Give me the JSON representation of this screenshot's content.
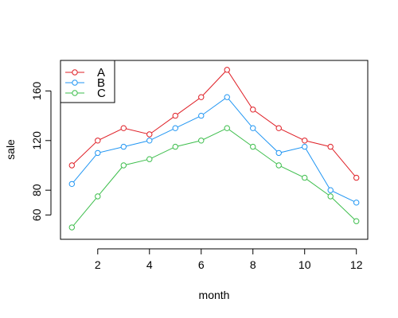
{
  "chart_data": {
    "type": "line",
    "xlabel": "month",
    "ylabel": "sale",
    "x": [
      1,
      2,
      3,
      4,
      5,
      6,
      7,
      8,
      9,
      10,
      11,
      12
    ],
    "xlim": [
      0.56,
      12.44
    ],
    "ylim": [
      40.4,
      184.6
    ],
    "x_ticks": [
      2,
      4,
      6,
      8,
      10,
      12
    ],
    "y_ticks": [
      60,
      80,
      120,
      160
    ],
    "legend_position": "top-left",
    "series": [
      {
        "name": "A",
        "color": "#DF1F26",
        "values": [
          100,
          120,
          130,
          125,
          140,
          155,
          177,
          145,
          130,
          120,
          115,
          90
        ]
      },
      {
        "name": "B",
        "color": "#2196F3",
        "values": [
          85,
          110,
          115,
          120,
          130,
          140,
          155,
          130,
          110,
          115,
          80,
          70
        ]
      },
      {
        "name": "C",
        "color": "#3DBE4C",
        "values": [
          50,
          75,
          100,
          105,
          115,
          120,
          130,
          115,
          100,
          90,
          75,
          55
        ]
      }
    ]
  }
}
